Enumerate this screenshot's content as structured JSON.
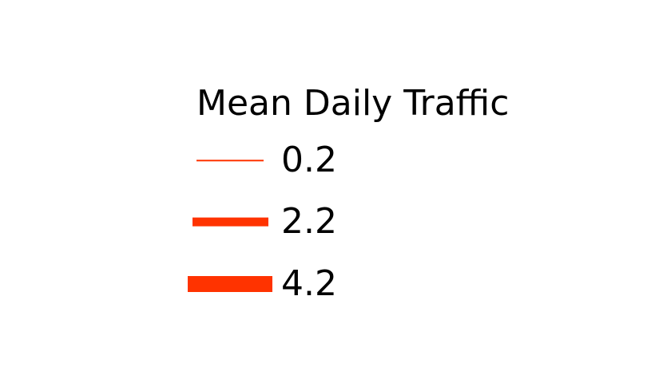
{
  "legend": {
    "title": "Mean Daily Traffic",
    "line_color": "#ff3300",
    "entries": [
      {
        "label": "0.2",
        "value": 0.2
      },
      {
        "label": "2.2",
        "value": 2.2
      },
      {
        "label": "4.2",
        "value": 4.2
      }
    ]
  }
}
